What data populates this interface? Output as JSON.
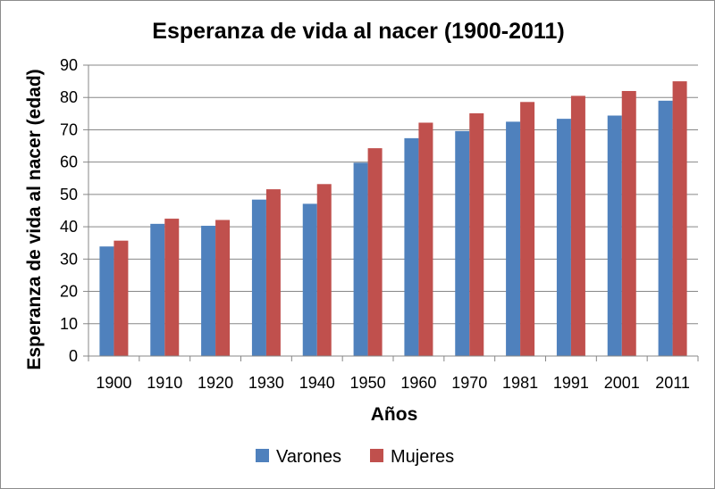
{
  "chart_data": {
    "type": "bar",
    "title": "Esperanza de vida al nacer (1900-2011)",
    "xlabel": "Años",
    "ylabel": "Esperanza de vida al nacer (edad)",
    "categories": [
      "1900",
      "1910",
      "1920",
      "1930",
      "1940",
      "1950",
      "1960",
      "1970",
      "1981",
      "1991",
      "2001",
      "2011"
    ],
    "series": [
      {
        "name": "Varones",
        "color": "#4f81bd",
        "values": [
          33.9,
          40.9,
          40.3,
          48.4,
          47.1,
          59.8,
          67.4,
          69.6,
          72.5,
          73.4,
          74.4,
          79.0
        ]
      },
      {
        "name": "Mujeres",
        "color": "#c0504d",
        "values": [
          35.7,
          42.5,
          42.1,
          51.6,
          53.2,
          64.3,
          72.2,
          75.1,
          78.6,
          80.5,
          82.0,
          85.0
        ]
      }
    ],
    "ylim": [
      0,
      90
    ],
    "yticks": [
      0,
      10,
      20,
      30,
      40,
      50,
      60,
      70,
      80,
      90
    ],
    "grid": true,
    "legend": "bottom"
  }
}
